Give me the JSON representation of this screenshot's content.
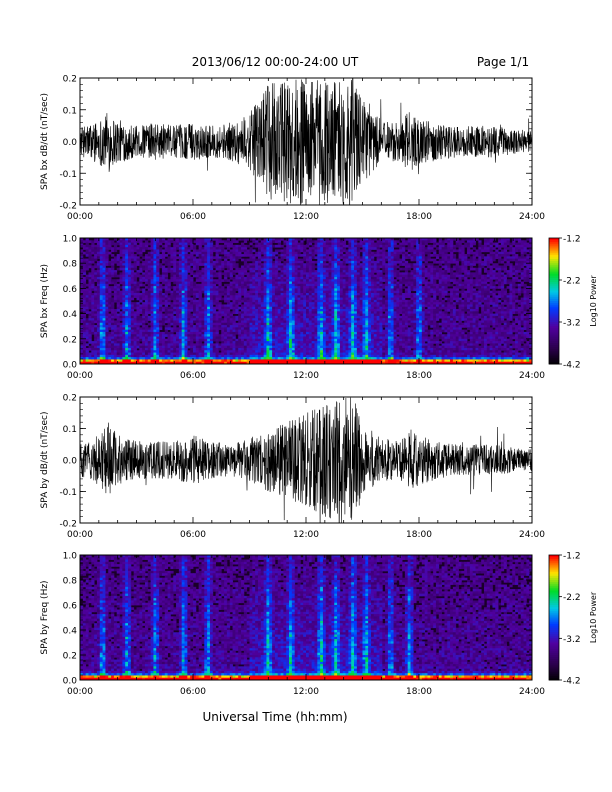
{
  "header": {
    "title": "2013/06/12  00:00-24:00 UT",
    "page": "Page 1/1"
  },
  "xaxis": {
    "label": "Universal Time (hh:mm)",
    "ticks": [
      "00:00",
      "06:00",
      "12:00",
      "18:00",
      "24:00"
    ]
  },
  "colorbar": {
    "label": "Log10 Power",
    "ticks": [
      "-1.2",
      "-2.2",
      "-3.2",
      "-4.2"
    ]
  },
  "chart_data": [
    {
      "type": "line",
      "ylabel": "SPA bx dB/dt (nT/sec)",
      "xlim": [
        0,
        24
      ],
      "ylim": [
        -0.2,
        0.2
      ],
      "yticks": [
        "0.2",
        "0.1",
        "0.0",
        "-0.1",
        "-0.2"
      ],
      "series": [
        {
          "x": [
            0,
            1,
            1.5,
            2,
            3,
            4,
            5,
            6,
            7,
            8,
            9,
            9.5,
            10,
            11,
            12,
            13,
            14,
            14.5,
            15,
            16,
            17,
            17.5,
            18,
            19,
            20,
            21,
            22,
            23,
            24
          ],
          "amplitude": [
            0.045,
            0.07,
            0.1,
            0.07,
            0.05,
            0.06,
            0.05,
            0.06,
            0.05,
            0.06,
            0.09,
            0.13,
            0.18,
            0.2,
            0.2,
            0.2,
            0.2,
            0.2,
            0.13,
            0.07,
            0.06,
            0.1,
            0.07,
            0.06,
            0.05,
            0.05,
            0.05,
            0.04,
            0.035
          ]
        }
      ]
    },
    {
      "type": "heatmap",
      "ylabel": "SPA bx Freq (Hz)",
      "xlim": [
        0,
        24
      ],
      "ylim": [
        0,
        1.0
      ],
      "yticks": [
        "1.0",
        "0.8",
        "0.6",
        "0.4",
        "0.2",
        "0.0"
      ],
      "zlim": [
        -4.2,
        -1.2
      ],
      "bursts_hours": [
        1.2,
        2.5,
        4.0,
        5.5,
        6.8,
        10.0,
        11.2,
        12.8,
        13.6,
        14.5,
        15.2,
        16.5,
        18.0
      ]
    },
    {
      "type": "line",
      "ylabel": "SPA by dB/dt (nT/sec)",
      "xlim": [
        0,
        24
      ],
      "ylim": [
        -0.2,
        0.2
      ],
      "yticks": [
        "0.2",
        "0.1",
        "0.0",
        "-0.1",
        "-0.2"
      ],
      "series": [
        {
          "x": [
            0,
            1,
            1.5,
            2,
            3,
            4,
            5,
            6,
            7,
            8,
            9,
            10,
            11,
            12,
            13,
            13.5,
            14,
            14.5,
            15,
            16,
            17,
            17.5,
            18,
            19,
            20,
            21,
            22,
            23,
            24
          ],
          "amplitude": [
            0.05,
            0.08,
            0.12,
            0.08,
            0.06,
            0.06,
            0.06,
            0.08,
            0.06,
            0.05,
            0.07,
            0.1,
            0.12,
            0.15,
            0.18,
            0.2,
            0.2,
            0.2,
            0.12,
            0.07,
            0.06,
            0.1,
            0.08,
            0.06,
            0.05,
            0.05,
            0.05,
            0.04,
            0.035
          ]
        }
      ]
    },
    {
      "type": "heatmap",
      "ylabel": "SPA by Freq (Hz)",
      "xlim": [
        0,
        24
      ],
      "ylim": [
        0,
        1.0
      ],
      "yticks": [
        "1.0",
        "0.8",
        "0.6",
        "0.4",
        "0.2",
        "0.0"
      ],
      "zlim": [
        -4.2,
        -1.2
      ],
      "bursts_hours": [
        1.2,
        2.5,
        4.0,
        5.5,
        6.8,
        10.0,
        11.2,
        12.8,
        13.6,
        14.5,
        15.2,
        16.5,
        17.5
      ]
    }
  ]
}
